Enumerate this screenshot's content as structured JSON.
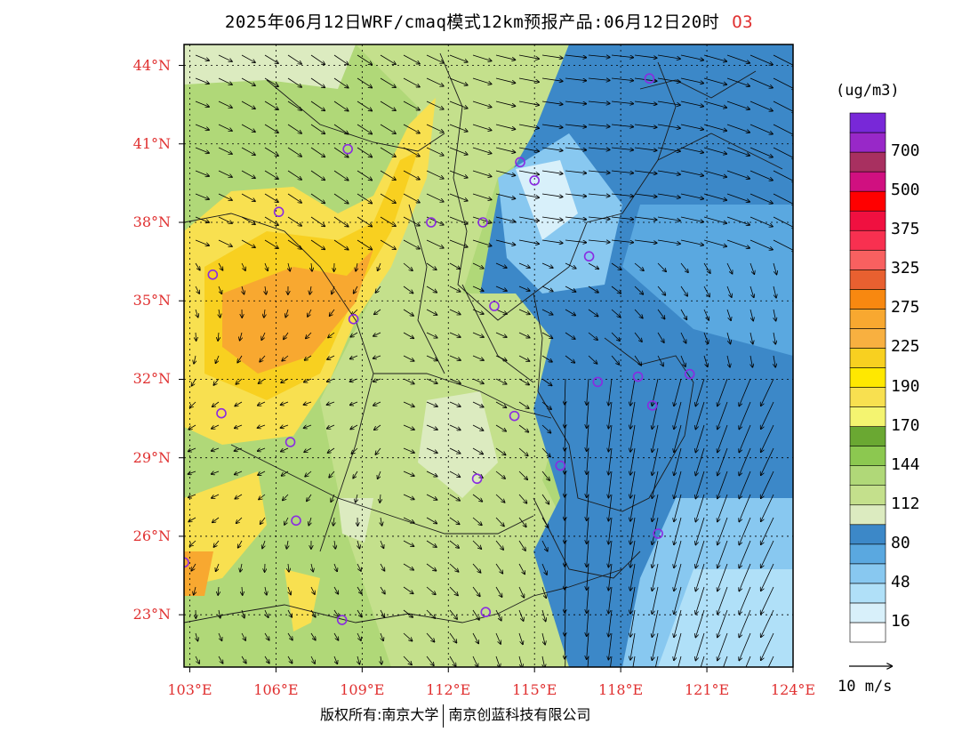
{
  "title": {
    "text": "2025年06月12日WRF/cmaq模式12km预报产品:06月12日20时",
    "species": "O3"
  },
  "axes": {
    "lat_labels": [
      "44°N",
      "41°N",
      "38°N",
      "35°N",
      "32°N",
      "29°N",
      "26°N",
      "23°N"
    ],
    "lon_labels": [
      "103°E",
      "106°E",
      "109°E",
      "112°E",
      "115°E",
      "118°E",
      "121°E",
      "124°E"
    ]
  },
  "colorbar": {
    "units": "(ug/m3)",
    "colors": [
      "#ffffff",
      "#d8f0fa",
      "#b0e0f8",
      "#88c8f0",
      "#5aa8e0",
      "#3c88c8",
      "#dcebc0",
      "#c4e08c",
      "#b0d878",
      "#8cc850",
      "#6aa832",
      "#f4f470",
      "#f8e050",
      "#ffe800",
      "#f8d020",
      "#f8b040",
      "#f8a830",
      "#f88810",
      "#e86030",
      "#f86060",
      "#f83050",
      "#f01040",
      "#ff0000",
      "#d01080",
      "#a83060",
      "#9828c8",
      "#7828d8"
    ],
    "labels": [
      "16",
      "48",
      "80",
      "112",
      "144",
      "170",
      "190",
      "225",
      "275",
      "325",
      "375",
      "500",
      "700"
    ]
  },
  "wind_reference": {
    "label": "10 m/s"
  },
  "stations": [
    {
      "lon": 119.0,
      "lat": 43.5
    },
    {
      "lon": 108.5,
      "lat": 40.8
    },
    {
      "lon": 111.4,
      "lat": 38.0
    },
    {
      "lon": 103.8,
      "lat": 36.0
    },
    {
      "lon": 106.1,
      "lat": 38.4
    },
    {
      "lon": 108.7,
      "lat": 34.3
    },
    {
      "lon": 113.6,
      "lat": 34.8
    },
    {
      "lon": 113.2,
      "lat": 38.0
    },
    {
      "lon": 114.5,
      "lat": 40.3
    },
    {
      "lon": 115.0,
      "lat": 39.6
    },
    {
      "lon": 116.9,
      "lat": 36.7
    },
    {
      "lon": 117.2,
      "lat": 31.9
    },
    {
      "lon": 118.6,
      "lat": 32.1
    },
    {
      "lon": 120.4,
      "lat": 32.2
    },
    {
      "lon": 119.1,
      "lat": 31.0
    },
    {
      "lon": 114.3,
      "lat": 30.6
    },
    {
      "lon": 113.0,
      "lat": 28.2
    },
    {
      "lon": 115.9,
      "lat": 28.7
    },
    {
      "lon": 106.5,
      "lat": 29.6
    },
    {
      "lon": 104.1,
      "lat": 30.7
    },
    {
      "lon": 106.7,
      "lat": 26.6
    },
    {
      "lon": 102.8,
      "lat": 25.0
    },
    {
      "lon": 119.3,
      "lat": 26.1
    },
    {
      "lon": 113.3,
      "lat": 23.1
    },
    {
      "lon": 108.3,
      "lat": 22.8
    }
  ],
  "copyright": {
    "part1": "版权所有:南京大学",
    "part2": "南京创蓝科技有限公司"
  }
}
